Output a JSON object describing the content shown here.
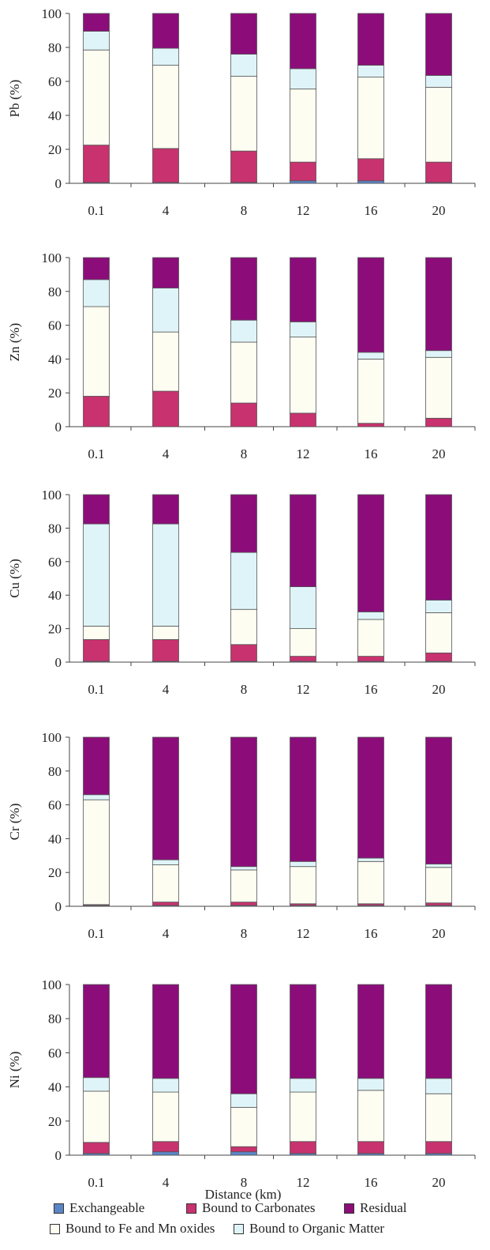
{
  "chart_data": [
    {
      "type": "bar",
      "stacked": true,
      "ylabel": "Pb (%)",
      "xlabel": "",
      "ylim": [
        0,
        100
      ],
      "yticks": [
        "0",
        "20",
        "40",
        "60",
        "80",
        "100"
      ],
      "categories": [
        "0.1",
        "4",
        "8",
        "12",
        "16",
        "20"
      ],
      "series": [
        {
          "name": "Exchangeable",
          "values": [
            0.5,
            0.5,
            0.5,
            1.5,
            1.5,
            0.5
          ]
        },
        {
          "name": "Bound to Carbonates",
          "values": [
            22,
            20,
            18.5,
            11,
            13,
            12
          ]
        },
        {
          "name": "Bound to Fe and Mn oxides",
          "values": [
            56,
            49,
            44,
            43,
            48,
            44
          ]
        },
        {
          "name": "Bound to Organic Matter",
          "values": [
            11,
            10,
            13,
            12,
            7,
            7
          ]
        },
        {
          "name": "Residual",
          "values": [
            10.5,
            20.5,
            24,
            32.5,
            30.5,
            36.5
          ]
        }
      ]
    },
    {
      "type": "bar",
      "stacked": true,
      "ylabel": "Zn (%)",
      "xlabel": "",
      "ylim": [
        0,
        100
      ],
      "yticks": [
        "0",
        "20",
        "40",
        "60",
        "80",
        "100"
      ],
      "categories": [
        "0.1",
        "4",
        "8",
        "12",
        "16",
        "20"
      ],
      "series": [
        {
          "name": "Exchangeable",
          "values": [
            0,
            0,
            0,
            0,
            0,
            0
          ]
        },
        {
          "name": "Bound to Carbonates",
          "values": [
            18,
            21,
            14,
            8,
            2,
            5
          ]
        },
        {
          "name": "Bound to Fe and Mn oxides",
          "values": [
            53,
            35,
            36,
            45,
            38,
            36
          ]
        },
        {
          "name": "Bound to Organic Matter",
          "values": [
            16,
            26,
            13,
            9,
            4,
            4
          ]
        },
        {
          "name": "Residual",
          "values": [
            13,
            18,
            37,
            38,
            56,
            55
          ]
        }
      ]
    },
    {
      "type": "bar",
      "stacked": true,
      "ylabel": "Cu (%)",
      "xlabel": "",
      "ylim": [
        0,
        100
      ],
      "yticks": [
        "0",
        "20",
        "40",
        "60",
        "80",
        "100"
      ],
      "categories": [
        "0.1",
        "4",
        "8",
        "12",
        "16",
        "20"
      ],
      "series": [
        {
          "name": "Exchangeable",
          "values": [
            0.5,
            0.5,
            0.5,
            0.5,
            0.5,
            0.5
          ]
        },
        {
          "name": "Bound to Carbonates",
          "values": [
            13,
            13,
            10,
            3,
            3,
            5
          ]
        },
        {
          "name": "Bound to Fe and Mn oxides",
          "values": [
            8,
            8,
            21,
            16.5,
            22,
            24
          ]
        },
        {
          "name": "Bound to Organic Matter",
          "values": [
            61,
            61,
            34,
            25,
            4.5,
            7.5
          ]
        },
        {
          "name": "Residual",
          "values": [
            17.5,
            17.5,
            34.5,
            55,
            70,
            63
          ]
        }
      ]
    },
    {
      "type": "bar",
      "stacked": true,
      "ylabel": "Cr (%)",
      "xlabel": "",
      "ylim": [
        0,
        100
      ],
      "yticks": [
        "0",
        "20",
        "40",
        "60",
        "80",
        "100"
      ],
      "categories": [
        "0.1",
        "4",
        "8",
        "12",
        "16",
        "20"
      ],
      "series": [
        {
          "name": "Exchangeable",
          "values": [
            0.5,
            0.5,
            0.5,
            0.5,
            0.5,
            0.5
          ]
        },
        {
          "name": "Bound to Carbonates",
          "values": [
            0.5,
            2,
            2,
            1,
            1,
            1.5
          ]
        },
        {
          "name": "Bound to Fe and Mn oxides",
          "values": [
            62,
            22,
            19,
            22,
            25,
            21
          ]
        },
        {
          "name": "Bound to Organic Matter",
          "values": [
            3,
            3,
            2,
            3,
            2,
            2
          ]
        },
        {
          "name": "Residual",
          "values": [
            34,
            72.5,
            76.5,
            73.5,
            71.5,
            75
          ]
        }
      ]
    },
    {
      "type": "bar",
      "stacked": true,
      "ylabel": "Ni (%)",
      "xlabel": "Distance (km)",
      "ylim": [
        0,
        100
      ],
      "yticks": [
        "0",
        "20",
        "40",
        "60",
        "80",
        "100"
      ],
      "categories": [
        "0.1",
        "4",
        "8",
        "12",
        "16",
        "20"
      ],
      "series": [
        {
          "name": "Exchangeable",
          "values": [
            1,
            2,
            2,
            1,
            1,
            1
          ]
        },
        {
          "name": "Bound to Carbonates",
          "values": [
            6.5,
            6,
            3,
            7,
            7,
            7
          ]
        },
        {
          "name": "Bound to Fe and Mn oxides",
          "values": [
            30,
            29,
            23,
            29,
            30,
            28
          ]
        },
        {
          "name": "Bound to Organic Matter",
          "values": [
            8,
            8,
            8,
            8,
            7,
            9
          ]
        },
        {
          "name": "Residual",
          "values": [
            54.5,
            55,
            64,
            55,
            55,
            55
          ]
        }
      ]
    }
  ],
  "legend": {
    "row1": [
      {
        "label": "Exchangeable",
        "color": "#5b86c6"
      },
      {
        "label": "Bound to Carbonates",
        "color": "#c8326e"
      },
      {
        "label": "Residual",
        "color": "#8c0d7a"
      }
    ],
    "row2": [
      {
        "label": "Bound to Fe and Mn oxides",
        "color": "#fdfdf2"
      },
      {
        "label": "Bound to Organic Matter",
        "color": "#dff4f8"
      }
    ]
  },
  "colors": {
    "Exchangeable": "#5b86c6",
    "Bound to Carbonates": "#c8326e",
    "Bound to Fe and Mn oxides": "#fdfdf2",
    "Bound to Organic Matter": "#dff4f8",
    "Residual": "#8c0d7a"
  }
}
